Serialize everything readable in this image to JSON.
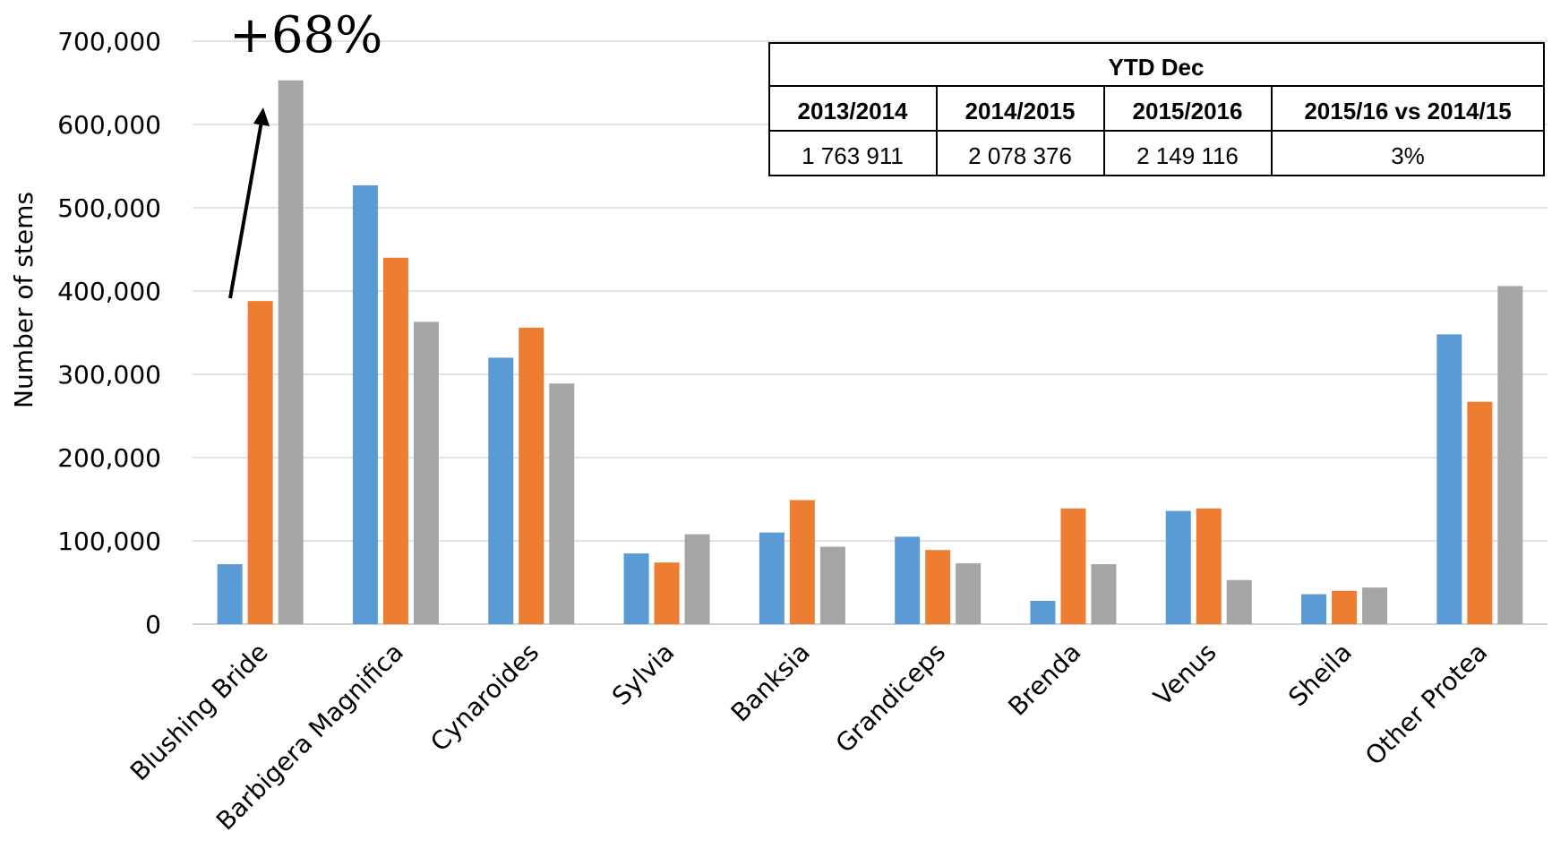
{
  "chart_data": {
    "type": "bar",
    "ylabel": "Number of stems",
    "ylim": [
      0,
      700000
    ],
    "yticks": [
      "0",
      "100,000",
      "200,000",
      "300,000",
      "400,000",
      "500,000",
      "600,000",
      "700,000"
    ],
    "categories": [
      "Blushing Bride",
      "Barbigera Magnifica",
      "Cynaroides",
      "Sylvia",
      "Banksia",
      "Grandiceps",
      "Brenda",
      "Venus",
      "Sheila",
      "Other Protea"
    ],
    "series": [
      {
        "color": "#5b9bd5",
        "values": [
          72000,
          527000,
          320000,
          85000,
          110000,
          105000,
          28000,
          136000,
          36000,
          348000
        ]
      },
      {
        "color": "#ed7d31",
        "values": [
          388000,
          440000,
          356000,
          74000,
          149000,
          89000,
          139000,
          139000,
          40000,
          267000
        ]
      },
      {
        "color": "#a5a5a5",
        "values": [
          653000,
          363000,
          289000,
          108000,
          93000,
          73000,
          72000,
          53000,
          44000,
          406000
        ]
      }
    ],
    "grid": true,
    "annotation": "+68%",
    "table": {
      "title": "YTD Dec",
      "headers": [
        "2013/2014",
        "2014/2015",
        "2015/2016",
        "2015/16 vs 2014/15"
      ],
      "row": [
        "1 763 911",
        "2 078 376",
        "2 149 116",
        "3%"
      ]
    }
  }
}
